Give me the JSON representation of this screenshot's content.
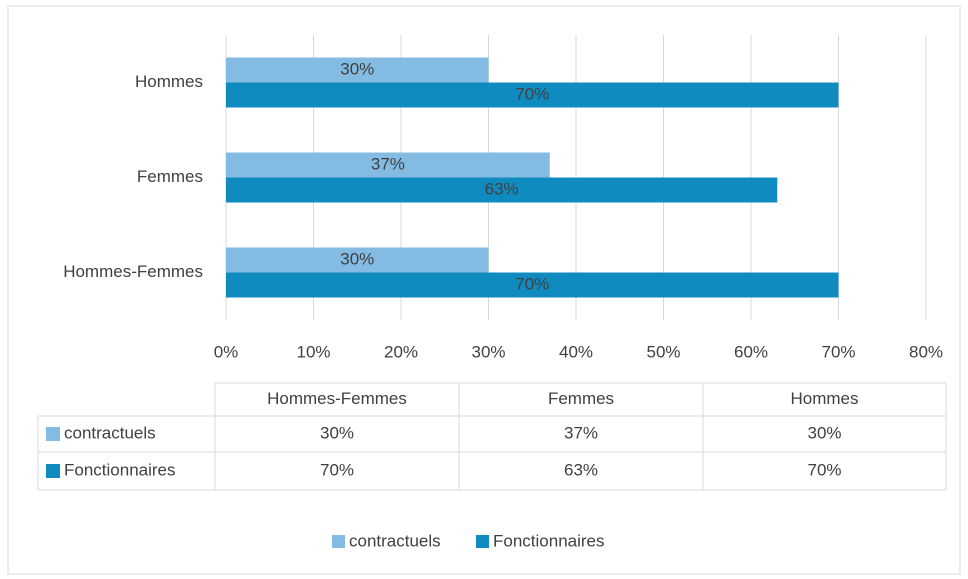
{
  "chart_data": {
    "type": "bar",
    "orientation": "horizontal",
    "categories": [
      "Hommes-Femmes",
      "Femmes",
      "Hommes"
    ],
    "series": [
      {
        "name": "contractuels",
        "color": "#84bbe2",
        "values": [
          30,
          37,
          30
        ],
        "value_labels": [
          "30%",
          "37%",
          "30%"
        ]
      },
      {
        "name": "Fonctionnaires",
        "color": "#0f8bc0",
        "values": [
          70,
          63,
          70
        ],
        "value_labels": [
          "70%",
          "63%",
          "70%"
        ]
      }
    ],
    "xlim": [
      0,
      80
    ],
    "xticks": [
      {
        "value": 0,
        "label": "0%"
      },
      {
        "value": 10,
        "label": "10%"
      },
      {
        "value": 20,
        "label": "20%"
      },
      {
        "value": 30,
        "label": "30%"
      },
      {
        "value": 40,
        "label": "40%"
      },
      {
        "value": 50,
        "label": "50%"
      },
      {
        "value": 60,
        "label": "60%"
      },
      {
        "value": 70,
        "label": "70%"
      },
      {
        "value": 80,
        "label": "80%"
      }
    ],
    "grid": true,
    "legend": "bottom",
    "data_table": true
  }
}
